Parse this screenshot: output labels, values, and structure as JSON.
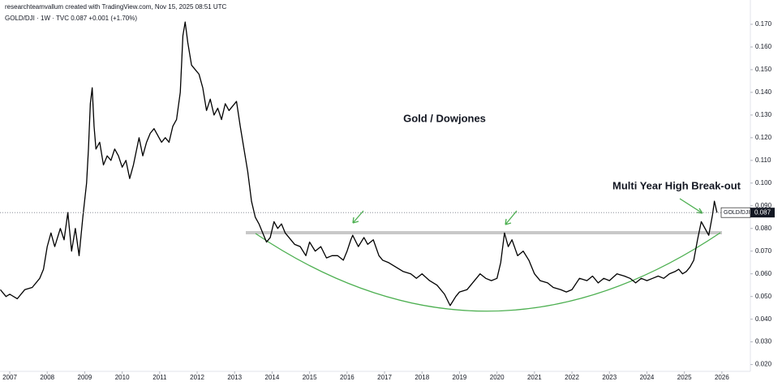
{
  "chart_data": {
    "type": "line",
    "header": "researchteamvallum created with TradingView.com, Nov 15, 2025 08:51 UTC",
    "symbol_line": "GOLD/DJI · 1W · TVC  0.087  +0.001 (+1.70%)",
    "annotations": [
      "Gold / Dowjones",
      "Multi Year High Break-out"
    ],
    "x": [
      2006.75,
      2006.9,
      2007.0,
      2007.2,
      2007.4,
      2007.6,
      2007.8,
      2007.9,
      2008.0,
      2008.1,
      2008.2,
      2008.35,
      2008.45,
      2008.55,
      2008.65,
      2008.75,
      2008.85,
      2008.95,
      2009.05,
      2009.1,
      2009.15,
      2009.2,
      2009.25,
      2009.3,
      2009.4,
      2009.5,
      2009.6,
      2009.7,
      2009.8,
      2009.9,
      2010.0,
      2010.1,
      2010.2,
      2010.3,
      2010.45,
      2010.55,
      2010.65,
      2010.75,
      2010.85,
      2010.95,
      2011.05,
      2011.15,
      2011.25,
      2011.35,
      2011.45,
      2011.55,
      2011.62,
      2011.68,
      2011.75,
      2011.85,
      2011.95,
      2012.05,
      2012.15,
      2012.25,
      2012.35,
      2012.45,
      2012.55,
      2012.65,
      2012.75,
      2012.85,
      2012.95,
      2013.05,
      2013.15,
      2013.25,
      2013.35,
      2013.45,
      2013.55,
      2013.65,
      2013.75,
      2013.85,
      2013.95,
      2014.05,
      2014.15,
      2014.25,
      2014.35,
      2014.45,
      2014.6,
      2014.75,
      2014.9,
      2015.0,
      2015.15,
      2015.3,
      2015.45,
      2015.6,
      2015.75,
      2015.9,
      2016.0,
      2016.1,
      2016.15,
      2016.3,
      2016.45,
      2016.55,
      2016.7,
      2016.85,
      2016.95,
      2017.1,
      2017.3,
      2017.5,
      2017.7,
      2017.85,
      2018.0,
      2018.2,
      2018.4,
      2018.6,
      2018.75,
      2018.9,
      2019.0,
      2019.2,
      2019.4,
      2019.55,
      2019.7,
      2019.85,
      2020.0,
      2020.1,
      2020.2,
      2020.3,
      2020.4,
      2020.55,
      2020.7,
      2020.85,
      2021.0,
      2021.15,
      2021.35,
      2021.5,
      2021.7,
      2021.85,
      2022.0,
      2022.2,
      2022.4,
      2022.55,
      2022.7,
      2022.85,
      2023.0,
      2023.2,
      2023.4,
      2023.55,
      2023.7,
      2023.85,
      2024.0,
      2024.15,
      2024.3,
      2024.45,
      2024.6,
      2024.75,
      2024.85,
      2024.95,
      2025.05,
      2025.15,
      2025.25,
      2025.35,
      2025.45,
      2025.55,
      2025.65,
      2025.75,
      2025.8,
      2025.87
    ],
    "series": [
      {
        "name": "GOLD/DJI",
        "color": "#000000",
        "values": [
          0.053,
          0.05,
          0.051,
          0.049,
          0.053,
          0.054,
          0.058,
          0.062,
          0.072,
          0.078,
          0.072,
          0.08,
          0.075,
          0.087,
          0.07,
          0.08,
          0.068,
          0.085,
          0.1,
          0.115,
          0.135,
          0.142,
          0.125,
          0.115,
          0.118,
          0.108,
          0.112,
          0.11,
          0.115,
          0.112,
          0.107,
          0.11,
          0.102,
          0.108,
          0.12,
          0.112,
          0.118,
          0.122,
          0.124,
          0.121,
          0.118,
          0.12,
          0.118,
          0.125,
          0.128,
          0.14,
          0.165,
          0.171,
          0.162,
          0.152,
          0.15,
          0.148,
          0.142,
          0.132,
          0.137,
          0.13,
          0.133,
          0.128,
          0.135,
          0.132,
          0.134,
          0.136,
          0.125,
          0.115,
          0.105,
          0.092,
          0.085,
          0.082,
          0.078,
          0.074,
          0.076,
          0.083,
          0.08,
          0.082,
          0.078,
          0.076,
          0.073,
          0.072,
          0.068,
          0.074,
          0.07,
          0.072,
          0.067,
          0.068,
          0.068,
          0.066,
          0.07,
          0.075,
          0.077,
          0.072,
          0.076,
          0.073,
          0.075,
          0.068,
          0.066,
          0.065,
          0.063,
          0.061,
          0.06,
          0.058,
          0.06,
          0.057,
          0.055,
          0.051,
          0.046,
          0.05,
          0.052,
          0.053,
          0.057,
          0.06,
          0.058,
          0.057,
          0.058,
          0.065,
          0.078,
          0.072,
          0.075,
          0.068,
          0.07,
          0.066,
          0.06,
          0.057,
          0.056,
          0.054,
          0.053,
          0.052,
          0.053,
          0.058,
          0.057,
          0.059,
          0.056,
          0.058,
          0.057,
          0.06,
          0.059,
          0.058,
          0.056,
          0.058,
          0.057,
          0.058,
          0.059,
          0.058,
          0.06,
          0.061,
          0.062,
          0.06,
          0.061,
          0.063,
          0.066,
          0.075,
          0.083,
          0.08,
          0.077,
          0.086,
          0.092,
          0.087
        ]
      }
    ],
    "xlim": [
      2006.74,
      2026.76
    ],
    "xticks": [
      2007,
      2008,
      2009,
      2010,
      2011,
      2012,
      2013,
      2014,
      2015,
      2016,
      2017,
      2018,
      2019,
      2020,
      2021,
      2022,
      2023,
      2024,
      2025,
      2026
    ],
    "ylim": [
      0.017,
      0.18
    ],
    "yticks": [
      {
        "value": 0.02,
        "label": "0.020"
      },
      {
        "value": 0.03,
        "label": "0.030"
      },
      {
        "value": 0.04,
        "label": "0.040"
      },
      {
        "value": 0.05,
        "label": "0.050"
      },
      {
        "value": 0.06,
        "label": "0.060"
      },
      {
        "value": 0.07,
        "label": "0.070"
      },
      {
        "value": 0.08,
        "label": "0.080"
      },
      {
        "value": 0.09,
        "label": "0.090"
      },
      {
        "value": 0.1,
        "label": "0.100"
      },
      {
        "value": 0.11,
        "label": "0.110"
      },
      {
        "value": 0.12,
        "label": "0.120"
      },
      {
        "value": 0.13,
        "label": "0.130"
      },
      {
        "value": 0.14,
        "label": "0.140"
      },
      {
        "value": 0.15,
        "label": "0.150"
      },
      {
        "value": 0.16,
        "label": "0.160"
      },
      {
        "value": 0.17,
        "label": "0.170"
      }
    ]
  }
}
